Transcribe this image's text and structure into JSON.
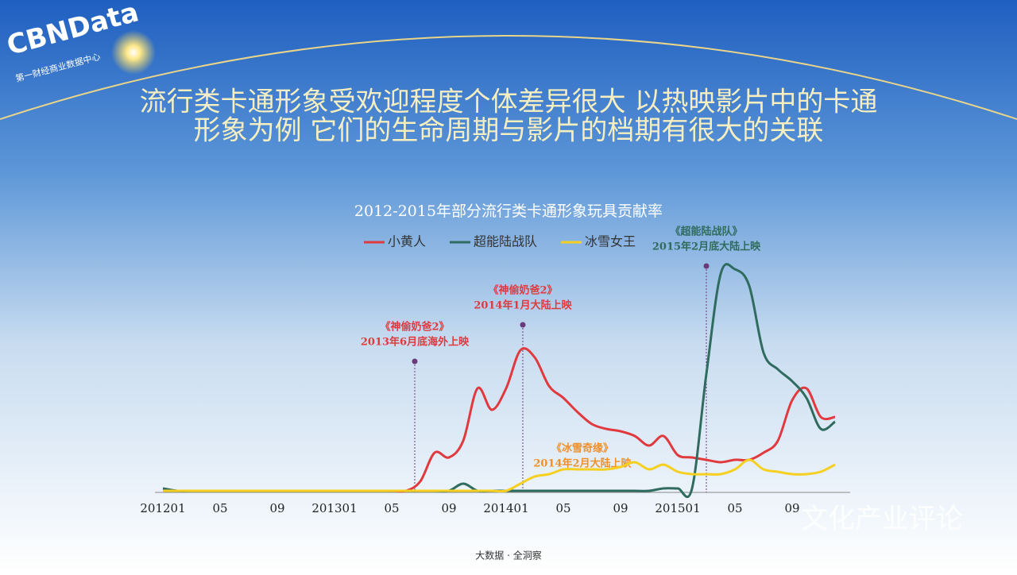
{
  "slide": {
    "logo": "CBNData",
    "logo_sub": "第一财经商业数据中心",
    "headline": [
      "流行类卡通形象受欢迎程度个体差异很大 以热映影片中的卡通",
      "形象为例 它们的生命周期与影片的档期有很大的关联"
    ],
    "footer": "大数据 · 全洞察",
    "watermark": "文化产业评论"
  },
  "chart_data": {
    "type": "line",
    "title": "2012-2015年部分流行类卡通形象玩具贡献率",
    "categories": [
      "201201",
      null,
      null,
      null,
      "05",
      null,
      null,
      null,
      "09",
      null,
      null,
      null,
      "201301",
      null,
      null,
      null,
      "05",
      null,
      null,
      null,
      "09",
      null,
      null,
      null,
      "201401",
      null,
      null,
      null,
      "05",
      null,
      null,
      null,
      "09",
      null,
      null,
      null,
      "201501",
      null,
      null,
      null,
      "05",
      null,
      null,
      null,
      "09",
      null,
      null,
      null
    ],
    "ylim": [
      0,
      100
    ],
    "grid": false,
    "legend": "top",
    "series": [
      {
        "name": "小黄人",
        "color": "#e03a3e",
        "values": [
          0,
          0,
          0,
          0,
          0,
          0,
          0,
          0,
          0,
          0,
          0,
          0,
          0,
          0,
          0,
          0,
          0,
          0,
          4,
          16,
          14,
          21,
          43,
          34,
          43,
          59,
          56,
          44,
          39,
          33,
          28,
          26,
          25,
          23,
          19,
          23,
          15,
          14,
          13,
          12,
          13,
          13,
          16,
          21,
          38,
          43,
          31,
          31
        ]
      },
      {
        "name": "超能陆战队",
        "color": "#2f6b5e",
        "values": [
          1,
          0,
          0,
          0,
          0,
          0,
          0,
          0,
          0,
          0,
          0,
          0,
          0,
          0,
          0,
          0,
          0,
          0,
          0,
          0,
          0,
          3,
          0,
          0,
          0,
          0,
          0,
          0,
          0,
          0,
          0,
          0,
          0,
          0,
          0,
          1,
          1,
          1,
          49,
          91,
          93,
          86,
          58,
          51,
          46,
          39,
          26,
          29
        ]
      },
      {
        "name": "冰雪女王",
        "color": "#f5d020",
        "values": [
          0,
          0,
          0,
          0,
          0,
          0,
          0,
          0,
          0,
          0,
          0,
          0,
          0,
          0,
          0,
          0,
          0,
          0,
          0,
          0,
          0,
          0,
          0,
          0,
          0,
          3,
          6,
          7,
          9,
          9,
          9,
          9,
          10,
          12,
          9,
          11,
          8,
          7,
          7,
          7,
          9,
          13,
          9,
          8,
          7,
          7,
          8,
          11
        ]
      }
    ],
    "annotations": [
      {
        "lines": [
          "《神偷奶爸2》",
          "2013年6月底海外上映"
        ],
        "color": "#e03a3e"
      },
      {
        "lines": [
          "《神偷奶爸2》",
          "2014年1月大陆上映"
        ],
        "color": "#e03a3e"
      },
      {
        "lines": [
          "《冰雪奇缘》",
          "2014年2月大陆上映"
        ],
        "color": "#f0902a"
      },
      {
        "lines": [
          "《超能陆战队》",
          "2015年2月底大陆上映"
        ],
        "color": "#2f6b5e"
      }
    ]
  }
}
